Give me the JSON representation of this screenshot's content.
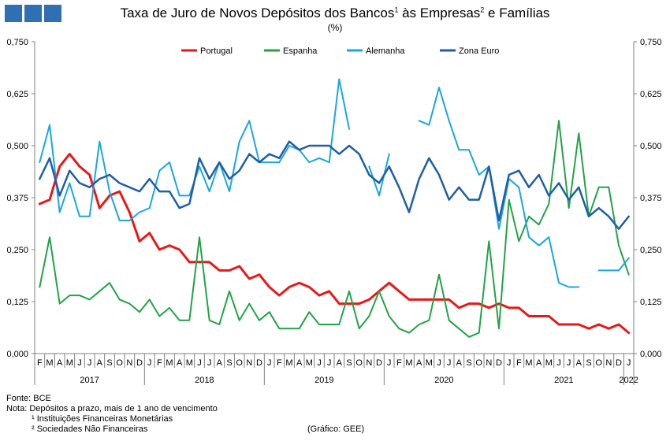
{
  "title": {
    "part1": "Taxa de Juro de Novos Depósitos dos Bancos",
    "sup1": "1",
    "part2": " às Empresas",
    "sup2": "2",
    "part3": " e Famílias"
  },
  "subtitle": "(%)",
  "colors": {
    "logo": "#2f6fb3",
    "axis": "#808080"
  },
  "footnotes": {
    "source": "Fonte: BCE",
    "note": "Nota: Depósitos a prazo, mais de 1 ano de vencimento",
    "n1": "¹ Instituições Financeiras Monetárias",
    "n2": "² Sociedades Não Financeiras",
    "credit": "(Gráfico: GEE)"
  },
  "chart_data": {
    "type": "line",
    "ylim": [
      0,
      0.75
    ],
    "yticks": [
      "0,000",
      "0,125",
      "0,250",
      "0,375",
      "0,500",
      "0,625",
      "0,750"
    ],
    "y_axis_secondary": true,
    "legend_position": "top",
    "grid": false,
    "months": [
      "F",
      "M",
      "A",
      "M",
      "J",
      "J",
      "A",
      "S",
      "O",
      "N",
      "D",
      "J",
      "F",
      "M",
      "A",
      "M",
      "J",
      "J",
      "A",
      "S",
      "O",
      "N",
      "D",
      "J",
      "F",
      "M",
      "A",
      "M",
      "J",
      "J",
      "A",
      "S",
      "O",
      "N",
      "D",
      "J",
      "F",
      "M",
      "A",
      "M",
      "J",
      "J",
      "A",
      "S",
      "O",
      "N",
      "D",
      "J",
      "F",
      "M",
      "A",
      "M",
      "J",
      "J",
      "A",
      "S",
      "O",
      "N",
      "D",
      "J"
    ],
    "years": [
      {
        "label": "2017",
        "start": 0,
        "end": 11
      },
      {
        "label": "2018",
        "start": 11,
        "end": 23
      },
      {
        "label": "2019",
        "start": 23,
        "end": 35
      },
      {
        "label": "2020",
        "start": 35,
        "end": 47
      },
      {
        "label": "2021",
        "start": 47,
        "end": 59
      },
      {
        "label": "2022",
        "start": 59,
        "end": 60
      }
    ],
    "series": [
      {
        "name": "Portugal",
        "color": "#e81818",
        "width": 3,
        "values": [
          0.36,
          0.37,
          0.45,
          0.48,
          0.45,
          0.43,
          0.35,
          0.38,
          0.39,
          0.34,
          0.27,
          0.29,
          0.25,
          0.26,
          0.25,
          0.22,
          0.22,
          0.22,
          0.2,
          0.2,
          0.21,
          0.18,
          0.19,
          0.16,
          0.14,
          0.16,
          0.17,
          0.16,
          0.14,
          0.15,
          0.12,
          0.12,
          0.12,
          0.13,
          0.15,
          0.17,
          0.15,
          0.13,
          0.13,
          0.13,
          0.13,
          0.13,
          0.11,
          0.12,
          0.12,
          0.11,
          0.12,
          0.11,
          0.11,
          0.09,
          0.09,
          0.09,
          0.07,
          0.07,
          0.07,
          0.06,
          0.07,
          0.06,
          0.07,
          0.05
        ]
      },
      {
        "name": "Espanha",
        "color": "#22a348",
        "width": 2,
        "values": [
          0.16,
          0.28,
          0.12,
          0.14,
          0.14,
          0.13,
          0.15,
          0.17,
          0.13,
          0.12,
          0.1,
          0.13,
          0.09,
          0.11,
          0.08,
          0.08,
          0.28,
          0.08,
          0.07,
          0.15,
          0.08,
          0.12,
          0.08,
          0.1,
          0.06,
          0.06,
          0.06,
          0.1,
          0.07,
          0.07,
          0.07,
          0.15,
          0.06,
          0.09,
          0.15,
          0.09,
          0.06,
          0.05,
          0.07,
          0.08,
          0.19,
          0.08,
          0.06,
          0.04,
          0.05,
          0.27,
          0.06,
          0.37,
          0.27,
          0.33,
          0.31,
          0.36,
          0.56,
          0.35,
          0.53,
          0.33,
          0.4,
          0.4,
          0.26,
          0.19
        ]
      },
      {
        "name": "Alemanha",
        "color": "#1aa7e0",
        "width": 2,
        "values": [
          0.46,
          0.55,
          0.34,
          0.41,
          0.33,
          0.33,
          0.51,
          0.39,
          0.32,
          0.32,
          0.34,
          0.35,
          0.44,
          0.46,
          0.38,
          0.38,
          0.45,
          0.39,
          0.46,
          0.39,
          0.51,
          0.56,
          0.46,
          0.46,
          0.46,
          0.5,
          0.49,
          0.46,
          0.47,
          0.46,
          0.66,
          0.54,
          null,
          0.45,
          0.38,
          0.48,
          null,
          null,
          0.56,
          0.55,
          0.64,
          0.56,
          0.49,
          0.49,
          0.43,
          0.45,
          0.3,
          0.42,
          0.4,
          0.28,
          0.26,
          0.28,
          0.17,
          0.16,
          0.16,
          null,
          0.2,
          0.2,
          0.2,
          0.23
        ]
      },
      {
        "name": "Zona Euro",
        "color": "#1f5fa6",
        "width": 2.5,
        "values": [
          0.42,
          0.47,
          0.38,
          0.44,
          0.41,
          0.4,
          0.42,
          0.43,
          0.41,
          0.4,
          0.39,
          0.42,
          0.39,
          0.39,
          0.35,
          0.36,
          0.47,
          0.42,
          0.46,
          0.42,
          0.44,
          0.48,
          0.46,
          0.48,
          0.47,
          0.51,
          0.49,
          0.5,
          0.5,
          0.5,
          0.48,
          0.5,
          0.48,
          0.43,
          0.41,
          0.45,
          0.4,
          0.34,
          0.42,
          0.47,
          0.43,
          0.37,
          0.4,
          0.37,
          0.37,
          0.45,
          0.32,
          0.43,
          0.44,
          0.4,
          0.43,
          0.38,
          0.41,
          0.37,
          0.4,
          0.33,
          0.35,
          0.33,
          0.3,
          0.33
        ]
      }
    ]
  }
}
